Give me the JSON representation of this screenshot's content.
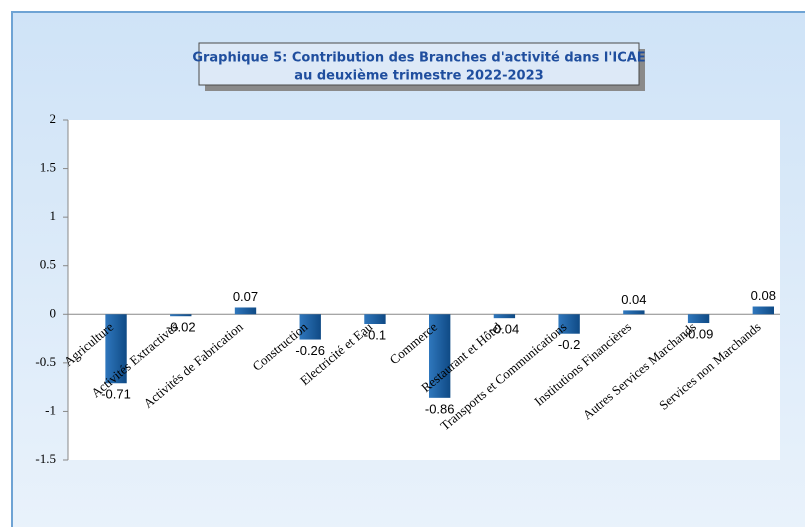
{
  "chart_data": {
    "type": "bar",
    "title": "Graphique 5: Contribution des Branches d'activité dans l'ICAE",
    "subtitle": "au deuxième trimestre  2022-2023",
    "categories": [
      "Agriculture",
      "Activités Extractives",
      "Activités de Fabrication",
      "Construction",
      "Electricité et Eau",
      "Commerce",
      "Restaurant et Hôtel",
      "Transports et Communications",
      "Institutions Financières",
      "Autres Services Marchands",
      "Services non Marchands"
    ],
    "values": [
      -0.71,
      -0.02,
      0.07,
      -0.26,
      -0.1,
      -0.86,
      -0.04,
      -0.2,
      0.04,
      -0.09,
      0.08
    ],
    "color": "#1f5f9e",
    "ylim": [
      -1.5,
      2
    ],
    "yticks": [
      -1.5,
      -1,
      -0.5,
      0,
      0.5,
      1,
      1.5,
      2
    ],
    "grid": false
  }
}
